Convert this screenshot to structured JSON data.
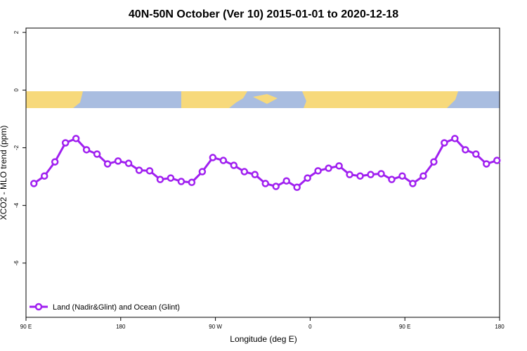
{
  "chart_data": {
    "type": "line",
    "title": "40N-50N October (Ver 10)   2015-01-01 to 2020-12-18",
    "x_label": "Longitude (deg E)",
    "y_label": "XCO2 - MLO trend (ppm)",
    "x": [
      97.5,
      107.5,
      117.5,
      127.5,
      137.5,
      147.5,
      157.5,
      167.5,
      177.5,
      187.5,
      197.5,
      207.5,
      217.5,
      227.5,
      237.5,
      247.5,
      257.5,
      267.5,
      277.5,
      287.5,
      297.5,
      307.5,
      317.5,
      327.5,
      337.5,
      347.5,
      357.5,
      367.5,
      377.5,
      387.5,
      397.5,
      407.5,
      417.5,
      427.5,
      437.5,
      447.5,
      457.5,
      467.5,
      477.5,
      487.5,
      497.5,
      507.5,
      517.5,
      527.5,
      537.5
    ],
    "series": [
      {
        "name": "Land (Nadir&Glint) and Ocean (Glint)",
        "color": "#a020f0",
        "values": [
          -3.24,
          -2.98,
          -2.49,
          -1.83,
          -1.68,
          -2.07,
          -2.22,
          -2.56,
          -2.46,
          -2.54,
          -2.78,
          -2.8,
          -3.1,
          -3.05,
          -3.17,
          -3.2,
          -2.83,
          -2.34,
          -2.44,
          -2.61,
          -2.83,
          -2.93,
          -3.24,
          -3.34,
          -3.15,
          -3.37,
          -3.05,
          -2.8,
          -2.71,
          -2.63,
          -2.93,
          -2.98,
          -2.93,
          -2.9,
          -3.1,
          -2.98,
          -3.24,
          -2.98,
          -2.49,
          -1.83,
          -1.68,
          -2.07,
          -2.22,
          -2.56,
          -2.44
        ]
      }
    ],
    "xlim": [
      90,
      540
    ],
    "xticks": [
      {
        "value": 90,
        "label": "90 E"
      },
      {
        "value": 180,
        "label": "180"
      },
      {
        "value": 270,
        "label": "90 W"
      },
      {
        "value": 360,
        "label": "0"
      },
      {
        "value": 450,
        "label": "90 E"
      },
      {
        "value": 540,
        "label": "180"
      }
    ],
    "ylim": [
      -7.88,
      2.15
    ],
    "yticks": [
      2,
      0,
      -2,
      -4,
      -6
    ],
    "legend": "bottom-left"
  }
}
